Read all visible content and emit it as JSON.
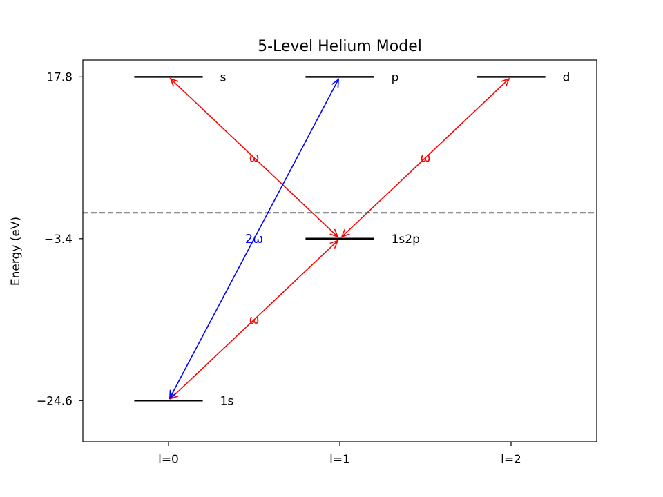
{
  "title": "5-Level Helium Model",
  "ylabel": "Energy (eV)",
  "x_ticks": [
    "l=0",
    "l=1",
    "l=2"
  ],
  "y_ticks": [
    {
      "value": 17.8,
      "label": "17.8"
    },
    {
      "value": -3.4,
      "label": "−3.4"
    },
    {
      "value": -24.6,
      "label": "−24.6"
    }
  ],
  "xlim": [
    -0.5,
    2.5
  ],
  "ylim": [
    -30.0,
    20.0
  ],
  "ionization_threshold_eV": 0.0,
  "levels": [
    {
      "label": "1s",
      "l": 0,
      "energy": -24.6
    },
    {
      "label": "1s2p",
      "l": 1,
      "energy": -3.4
    },
    {
      "label": "s",
      "l": 0,
      "energy": 17.8
    },
    {
      "label": "p",
      "l": 1,
      "energy": 17.8
    },
    {
      "label": "d",
      "l": 2,
      "energy": 17.8
    }
  ],
  "transitions": [
    {
      "from": "1s",
      "to": "1s2p",
      "label": "ω",
      "color": "#ff0000"
    },
    {
      "from": "1s2p",
      "to": "s",
      "label": "ω",
      "color": "#ff0000"
    },
    {
      "from": "1s2p",
      "to": "d",
      "label": "ω",
      "color": "#ff0000"
    },
    {
      "from": "1s",
      "to": "p",
      "label": "2ω",
      "color": "#0000ff"
    }
  ],
  "colors": {
    "threshold": "#808080",
    "level": "#000000"
  }
}
